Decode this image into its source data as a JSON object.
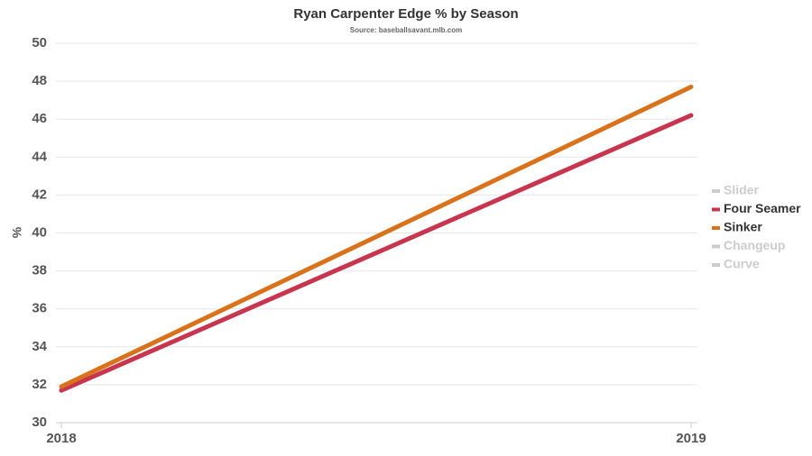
{
  "chart_data": {
    "type": "line",
    "title": "Ryan Carpenter Edge % by Season",
    "subtitle": "Source: baseballsavant.mlb.com",
    "y_label": "%",
    "categories": [
      "2018",
      "2019"
    ],
    "series": [
      {
        "name": "Slider",
        "color": "#cccccc",
        "hidden": true,
        "values": [
          null,
          null
        ]
      },
      {
        "name": "Four Seamer",
        "color": "#c8354f",
        "hidden": false,
        "values": [
          31.7,
          46.2
        ]
      },
      {
        "name": "Sinker",
        "color": "#d9721a",
        "hidden": false,
        "values": [
          31.9,
          47.7
        ]
      },
      {
        "name": "Changeup",
        "color": "#cccccc",
        "hidden": true,
        "values": [
          null,
          null
        ]
      },
      {
        "name": "Curve",
        "color": "#cccccc",
        "hidden": true,
        "values": [
          null,
          null
        ]
      }
    ],
    "ylim": [
      30,
      50
    ],
    "yticks": [
      30,
      32,
      34,
      36,
      38,
      40,
      42,
      44,
      46,
      48,
      50
    ],
    "grid": true,
    "legend": "right"
  }
}
